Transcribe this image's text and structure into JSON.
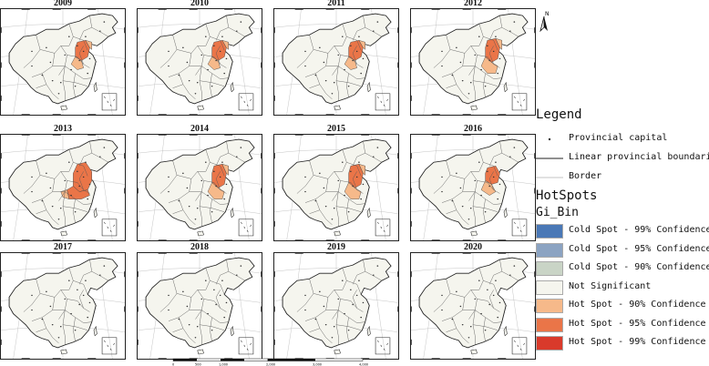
{
  "panels": [
    {
      "year": "2009",
      "hot": "h1"
    },
    {
      "year": "2010",
      "hot": "h1"
    },
    {
      "year": "2011",
      "hot": "h1"
    },
    {
      "year": "2012",
      "hot": "h2"
    },
    {
      "year": "2013",
      "hot": "h3"
    },
    {
      "year": "2014",
      "hot": "h2"
    },
    {
      "year": "2015",
      "hot": "h2"
    },
    {
      "year": "2016",
      "hot": "h4"
    },
    {
      "year": "2017",
      "hot": "none"
    },
    {
      "year": "2018",
      "hot": "none"
    },
    {
      "year": "2019",
      "hot": "none"
    },
    {
      "year": "2020",
      "hot": "none"
    }
  ],
  "north_label": "N",
  "legend": {
    "title": "Legend",
    "items": [
      {
        "type": "point",
        "label": "Provincial capital"
      },
      {
        "type": "line",
        "label": "Linear provincial boundaries"
      },
      {
        "type": "thinline",
        "label": "Border"
      }
    ],
    "hotspots_title": "HotSpots",
    "gi_title": "Gi_Bin",
    "classes": [
      {
        "color": "#4a78b6",
        "label": "Cold Spot - 99% Confidence"
      },
      {
        "color": "#8ba3c2",
        "label": "Cold Spot - 95% Confidence"
      },
      {
        "color": "#c9d4c6",
        "label": "Cold Spot - 90% Confidence"
      },
      {
        "color": "#f5f5ee",
        "label": "Not Significant"
      },
      {
        "color": "#f6b98a",
        "label": "Hot Spot - 90% Confidence"
      },
      {
        "color": "#ea7548",
        "label": "Hot Spot - 95% Confidence"
      },
      {
        "color": "#d93a2b",
        "label": "Hot Spot - 99% Confidence"
      }
    ]
  },
  "scale_labels": [
    "0",
    "500",
    "1,000",
    "2,000",
    "3,000",
    "4,000"
  ]
}
